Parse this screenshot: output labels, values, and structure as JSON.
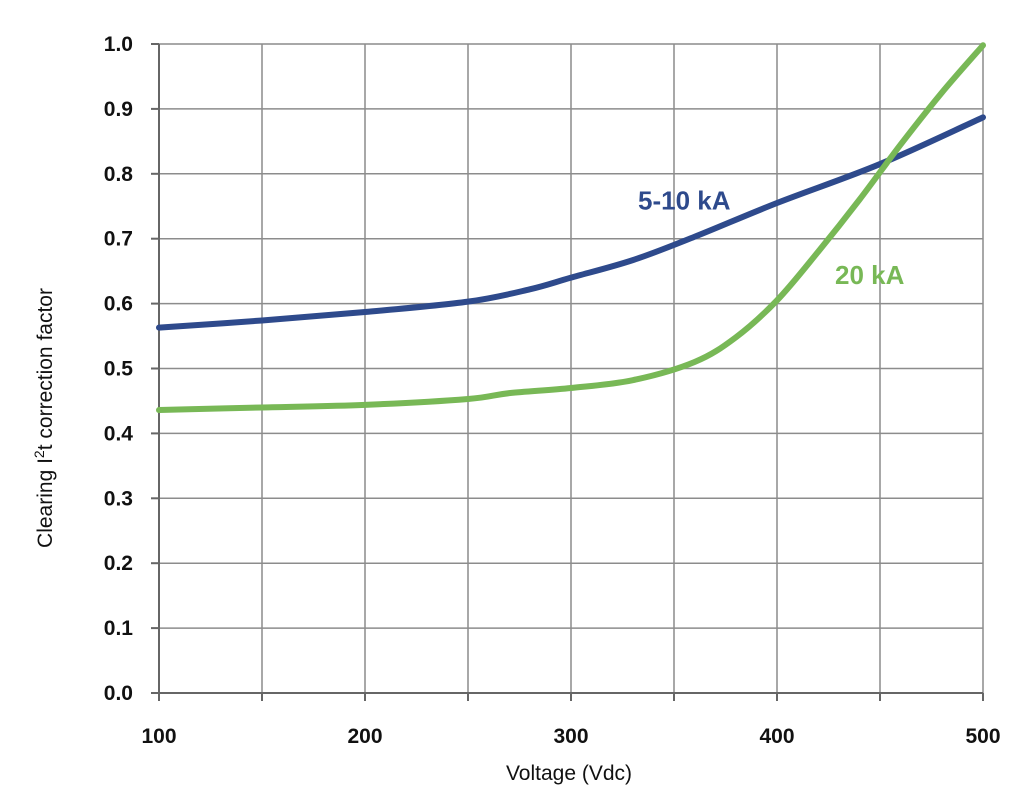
{
  "chart_data": {
    "type": "line",
    "title": "",
    "xlabel": "Voltage (Vdc)",
    "ylabel_main": "Clearing I",
    "ylabel_sup": "2",
    "ylabel_tail": "t correction factor",
    "xlim": [
      100,
      500
    ],
    "ylim": [
      0.0,
      1.0
    ],
    "xticks": [
      100,
      200,
      300,
      400,
      500
    ],
    "xtick_labels": [
      "100",
      "200",
      "300",
      "400",
      "500"
    ],
    "yticks": [
      0.0,
      0.1,
      0.2,
      0.3,
      0.4,
      0.5,
      0.6,
      0.7,
      0.8,
      0.9,
      1.0
    ],
    "ytick_labels": [
      "0.0",
      "0.1",
      "0.2",
      "0.3",
      "0.4",
      "0.5",
      "0.6",
      "0.7",
      "0.8",
      "0.9",
      "1.0"
    ],
    "x_grid_lines": [
      100,
      150,
      200,
      250,
      300,
      350,
      400,
      450,
      500
    ],
    "grid": true,
    "legend": "none",
    "series": [
      {
        "name": "5-10 kA",
        "color": "#2e4a8c",
        "label_at": [
          355,
          0.745
        ],
        "x": [
          100,
          150,
          200,
          250,
          280,
          300,
          330,
          360,
          400,
          450,
          500
        ],
        "y": [
          0.563,
          0.574,
          0.587,
          0.603,
          0.622,
          0.64,
          0.667,
          0.703,
          0.755,
          0.815,
          0.887
        ]
      },
      {
        "name": "20 kA",
        "color": "#78b856",
        "label_at": [
          445,
          0.63
        ],
        "x": [
          100,
          150,
          200,
          250,
          270,
          300,
          330,
          360,
          380,
          400,
          420,
          440,
          460,
          480,
          500
        ],
        "y": [
          0.436,
          0.44,
          0.444,
          0.453,
          0.462,
          0.47,
          0.482,
          0.51,
          0.548,
          0.605,
          0.68,
          0.76,
          0.845,
          0.925,
          0.998
        ]
      }
    ]
  }
}
